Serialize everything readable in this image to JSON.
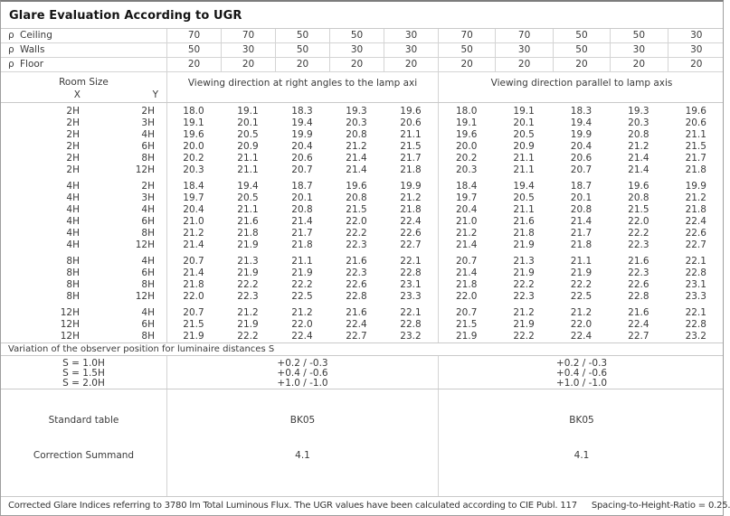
{
  "title": "Glare Evaluation According to UGR",
  "colors": {
    "background": "#ffffff",
    "border_outer": "#9e9e9e",
    "border_inner": "#c9c9c9",
    "border_cell": "#d4d4d4",
    "text": "#3a3a3a"
  },
  "reflectance_rows": [
    {
      "symbol": "ρ",
      "name": "Ceiling",
      "values": [
        "70",
        "70",
        "50",
        "50",
        "30",
        "70",
        "70",
        "50",
        "50",
        "30"
      ]
    },
    {
      "symbol": "ρ",
      "name": "Walls",
      "values": [
        "50",
        "30",
        "50",
        "30",
        "30",
        "50",
        "30",
        "50",
        "30",
        "30"
      ]
    },
    {
      "symbol": "ρ",
      "name": "Floor",
      "values": [
        "20",
        "20",
        "20",
        "20",
        "20",
        "20",
        "20",
        "20",
        "20",
        "20"
      ]
    }
  ],
  "room_size_header": {
    "title": "Room Size",
    "x": "X",
    "y": "Y"
  },
  "sections": [
    {
      "header": "Viewing direction at right angles to the lamp axi"
    },
    {
      "header": "Viewing direction parallel to lamp axis"
    }
  ],
  "ugr_groups": [
    {
      "rows": [
        {
          "x": "2H",
          "y": "2H",
          "right_angles": [
            "18.0",
            "19.1",
            "18.3",
            "19.3",
            "19.6"
          ],
          "parallel": [
            "18.0",
            "19.1",
            "18.3",
            "19.3",
            "19.6"
          ]
        },
        {
          "x": "2H",
          "y": "3H",
          "right_angles": [
            "19.1",
            "20.1",
            "19.4",
            "20.3",
            "20.6"
          ],
          "parallel": [
            "19.1",
            "20.1",
            "19.4",
            "20.3",
            "20.6"
          ]
        },
        {
          "x": "2H",
          "y": "4H",
          "right_angles": [
            "19.6",
            "20.5",
            "19.9",
            "20.8",
            "21.1"
          ],
          "parallel": [
            "19.6",
            "20.5",
            "19.9",
            "20.8",
            "21.1"
          ]
        },
        {
          "x": "2H",
          "y": "6H",
          "right_angles": [
            "20.0",
            "20.9",
            "20.4",
            "21.2",
            "21.5"
          ],
          "parallel": [
            "20.0",
            "20.9",
            "20.4",
            "21.2",
            "21.5"
          ]
        },
        {
          "x": "2H",
          "y": "8H",
          "right_angles": [
            "20.2",
            "21.1",
            "20.6",
            "21.4",
            "21.7"
          ],
          "parallel": [
            "20.2",
            "21.1",
            "20.6",
            "21.4",
            "21.7"
          ]
        },
        {
          "x": "2H",
          "y": "12H",
          "right_angles": [
            "20.3",
            "21.1",
            "20.7",
            "21.4",
            "21.8"
          ],
          "parallel": [
            "20.3",
            "21.1",
            "20.7",
            "21.4",
            "21.8"
          ]
        }
      ]
    },
    {
      "rows": [
        {
          "x": "4H",
          "y": "2H",
          "right_angles": [
            "18.4",
            "19.4",
            "18.7",
            "19.6",
            "19.9"
          ],
          "parallel": [
            "18.4",
            "19.4",
            "18.7",
            "19.6",
            "19.9"
          ]
        },
        {
          "x": "4H",
          "y": "3H",
          "right_angles": [
            "19.7",
            "20.5",
            "20.1",
            "20.8",
            "21.2"
          ],
          "parallel": [
            "19.7",
            "20.5",
            "20.1",
            "20.8",
            "21.2"
          ]
        },
        {
          "x": "4H",
          "y": "4H",
          "right_angles": [
            "20.4",
            "21.1",
            "20.8",
            "21.5",
            "21.8"
          ],
          "parallel": [
            "20.4",
            "21.1",
            "20.8",
            "21.5",
            "21.8"
          ]
        },
        {
          "x": "4H",
          "y": "6H",
          "right_angles": [
            "21.0",
            "21.6",
            "21.4",
            "22.0",
            "22.4"
          ],
          "parallel": [
            "21.0",
            "21.6",
            "21.4",
            "22.0",
            "22.4"
          ]
        },
        {
          "x": "4H",
          "y": "8H",
          "right_angles": [
            "21.2",
            "21.8",
            "21.7",
            "22.2",
            "22.6"
          ],
          "parallel": [
            "21.2",
            "21.8",
            "21.7",
            "22.2",
            "22.6"
          ]
        },
        {
          "x": "4H",
          "y": "12H",
          "right_angles": [
            "21.4",
            "21.9",
            "21.8",
            "22.3",
            "22.7"
          ],
          "parallel": [
            "21.4",
            "21.9",
            "21.8",
            "22.3",
            "22.7"
          ]
        }
      ]
    },
    {
      "rows": [
        {
          "x": "8H",
          "y": "4H",
          "right_angles": [
            "20.7",
            "21.3",
            "21.1",
            "21.6",
            "22.1"
          ],
          "parallel": [
            "20.7",
            "21.3",
            "21.1",
            "21.6",
            "22.1"
          ]
        },
        {
          "x": "8H",
          "y": "6H",
          "right_angles": [
            "21.4",
            "21.9",
            "21.9",
            "22.3",
            "22.8"
          ],
          "parallel": [
            "21.4",
            "21.9",
            "21.9",
            "22.3",
            "22.8"
          ]
        },
        {
          "x": "8H",
          "y": "8H",
          "right_angles": [
            "21.8",
            "22.2",
            "22.2",
            "22.6",
            "23.1"
          ],
          "parallel": [
            "21.8",
            "22.2",
            "22.2",
            "22.6",
            "23.1"
          ]
        },
        {
          "x": "8H",
          "y": "12H",
          "right_angles": [
            "22.0",
            "22.3",
            "22.5",
            "22.8",
            "23.3"
          ],
          "parallel": [
            "22.0",
            "22.3",
            "22.5",
            "22.8",
            "23.3"
          ]
        }
      ]
    },
    {
      "rows": [
        {
          "x": "12H",
          "y": "4H",
          "right_angles": [
            "20.7",
            "21.2",
            "21.2",
            "21.6",
            "22.1"
          ],
          "parallel": [
            "20.7",
            "21.2",
            "21.2",
            "21.6",
            "22.1"
          ]
        },
        {
          "x": "12H",
          "y": "6H",
          "right_angles": [
            "21.5",
            "21.9",
            "22.0",
            "22.4",
            "22.8"
          ],
          "parallel": [
            "21.5",
            "21.9",
            "22.0",
            "22.4",
            "22.8"
          ]
        },
        {
          "x": "12H",
          "y": "8H",
          "right_angles": [
            "21.9",
            "22.2",
            "22.4",
            "22.7",
            "23.2"
          ],
          "parallel": [
            "21.9",
            "22.2",
            "22.4",
            "22.7",
            "23.2"
          ]
        }
      ]
    }
  ],
  "variation_note": "Variation of the observer position for luminaire distances S",
  "spacing_rows": [
    {
      "label": "S = 1.0H",
      "right_angles": "+0.2 / -0.3",
      "parallel": "+0.2 / -0.3"
    },
    {
      "label": "S = 1.5H",
      "right_angles": "+0.4 / -0.6",
      "parallel": "+0.4 / -0.6"
    },
    {
      "label": "S = 2.0H",
      "right_angles": "+1.0 / -1.0",
      "parallel": "+1.0 / -1.0"
    }
  ],
  "standard_table": {
    "label": "Standard table",
    "right_angles": "BK05",
    "parallel": "BK05"
  },
  "correction_summand": {
    "label": "Correction Summand",
    "right_angles": "4.1",
    "parallel": "4.1"
  },
  "footer": {
    "text1": "Corrected Glare Indices referring to 3780 lm Total Luminous Flux. The UGR values have been calculated according to CIE Publ. 117",
    "text2": "Spacing-to-Height-Ratio = 0.25."
  }
}
